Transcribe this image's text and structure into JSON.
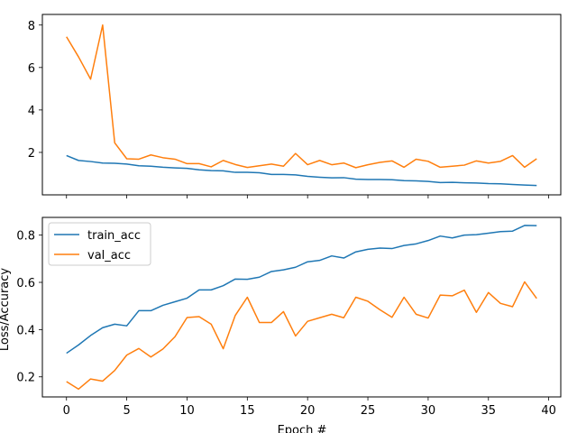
{
  "chart_data": [
    {
      "type": "line",
      "panel": "top",
      "xlabel": "",
      "ylabel": "",
      "xlim": [
        -2,
        41
      ],
      "ylim": [
        0,
        8.5
      ],
      "x_ticks": [
        0,
        5,
        10,
        15,
        20,
        25,
        30,
        35,
        40
      ],
      "y_ticks": [
        2,
        4,
        6,
        8
      ],
      "y_tick_labels": [
        "2",
        "4",
        "6",
        "8"
      ],
      "grid": false,
      "legend": "none",
      "x": [
        0,
        1,
        2,
        3,
        4,
        5,
        6,
        7,
        8,
        9,
        10,
        11,
        12,
        13,
        14,
        15,
        16,
        17,
        18,
        19,
        20,
        21,
        22,
        23,
        24,
        25,
        26,
        27,
        28,
        29,
        30,
        31,
        32,
        33,
        34,
        35,
        36,
        37,
        38,
        39
      ],
      "series": [
        {
          "color": "#1f77b4",
          "values": [
            1.85,
            1.62,
            1.57,
            1.5,
            1.49,
            1.45,
            1.37,
            1.35,
            1.3,
            1.27,
            1.25,
            1.18,
            1.14,
            1.13,
            1.06,
            1.06,
            1.04,
            0.96,
            0.96,
            0.94,
            0.87,
            0.83,
            0.8,
            0.81,
            0.74,
            0.72,
            0.72,
            0.71,
            0.67,
            0.66,
            0.63,
            0.58,
            0.59,
            0.57,
            0.56,
            0.53,
            0.52,
            0.49,
            0.46,
            0.44
          ]
        },
        {
          "color": "#ff7f0e",
          "values": [
            7.45,
            6.5,
            5.45,
            8.0,
            2.45,
            1.7,
            1.68,
            1.88,
            1.75,
            1.68,
            1.47,
            1.47,
            1.32,
            1.62,
            1.43,
            1.29,
            1.37,
            1.45,
            1.35,
            1.95,
            1.42,
            1.62,
            1.42,
            1.5,
            1.28,
            1.42,
            1.53,
            1.6,
            1.3,
            1.68,
            1.58,
            1.3,
            1.35,
            1.4,
            1.6,
            1.5,
            1.58,
            1.85,
            1.3,
            1.7
          ]
        }
      ]
    },
    {
      "type": "line",
      "panel": "bottom",
      "xlabel": "Epoch #",
      "ylabel": "Loss/Accuracy",
      "xlim": [
        -2,
        41
      ],
      "ylim": [
        0.115,
        0.875
      ],
      "x_ticks": [
        0,
        5,
        10,
        15,
        20,
        25,
        30,
        35,
        40
      ],
      "x_tick_labels": [
        "0",
        "5",
        "10",
        "15",
        "20",
        "25",
        "30",
        "35",
        "40"
      ],
      "y_ticks": [
        0.2,
        0.4,
        0.6,
        0.8
      ],
      "y_tick_labels": [
        "0.2",
        "0.4",
        "0.6",
        "0.8"
      ],
      "grid": false,
      "legend": "upper-left",
      "x": [
        0,
        1,
        2,
        3,
        4,
        5,
        6,
        7,
        8,
        9,
        10,
        11,
        12,
        13,
        14,
        15,
        16,
        17,
        18,
        19,
        20,
        21,
        22,
        23,
        24,
        25,
        26,
        27,
        28,
        29,
        30,
        31,
        32,
        33,
        34,
        35,
        36,
        37,
        38,
        39
      ],
      "series": [
        {
          "name": "train_acc",
          "color": "#1f77b4",
          "values": [
            0.3,
            0.335,
            0.375,
            0.408,
            0.423,
            0.416,
            0.48,
            0.48,
            0.503,
            0.518,
            0.533,
            0.568,
            0.568,
            0.586,
            0.614,
            0.613,
            0.622,
            0.646,
            0.653,
            0.664,
            0.687,
            0.693,
            0.712,
            0.703,
            0.729,
            0.74,
            0.745,
            0.743,
            0.756,
            0.763,
            0.777,
            0.796,
            0.788,
            0.8,
            0.802,
            0.808,
            0.815,
            0.817,
            0.841,
            0.84
          ]
        },
        {
          "name": "val_acc",
          "color": "#ff7f0e",
          "values": [
            0.18,
            0.148,
            0.191,
            0.182,
            0.227,
            0.292,
            0.32,
            0.284,
            0.318,
            0.37,
            0.451,
            0.455,
            0.423,
            0.319,
            0.46,
            0.537,
            0.43,
            0.43,
            0.476,
            0.373,
            0.435,
            0.45,
            0.465,
            0.45,
            0.537,
            0.52,
            0.484,
            0.452,
            0.537,
            0.465,
            0.449,
            0.546,
            0.543,
            0.567,
            0.473,
            0.557,
            0.511,
            0.497,
            0.602,
            0.532
          ]
        }
      ]
    }
  ]
}
